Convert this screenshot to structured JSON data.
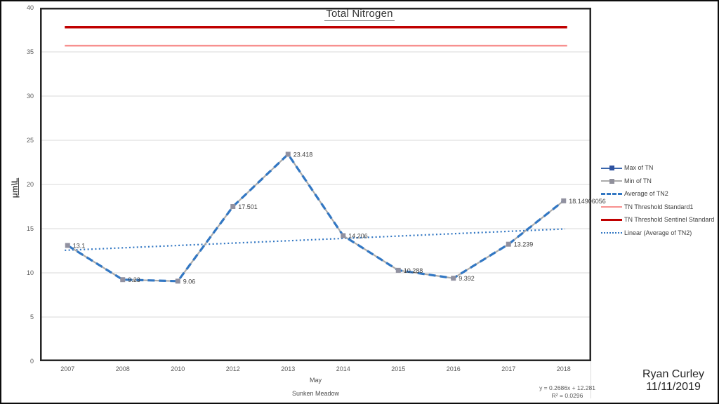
{
  "chart_data": {
    "type": "line",
    "title": "Total Nitrogen",
    "ylabel": "μm\\L",
    "xlabel": "May",
    "x_context": "Sunken Meadow",
    "ylim": [
      0,
      40
    ],
    "ytick_step": 5,
    "grid": true,
    "legend_position": "right",
    "categories": [
      "2007",
      "2008",
      "2010",
      "2012",
      "2013",
      "2014",
      "2015",
      "2016",
      "2017",
      "2018"
    ],
    "series": [
      {
        "name": "Max of TN",
        "values": [
          13.1,
          9.23,
          9.06,
          17.501,
          23.418,
          14.206,
          10.288,
          9.392,
          13.239,
          18.14906056
        ]
      },
      {
        "name": "Min of TN",
        "values": [
          13.1,
          9.23,
          9.06,
          17.501,
          23.418,
          14.206,
          10.288,
          9.392,
          13.239,
          18.14906056
        ]
      },
      {
        "name": "Average of TN2",
        "values": [
          13.1,
          9.23,
          9.06,
          17.501,
          23.418,
          14.206,
          10.288,
          9.392,
          13.239,
          18.14906056
        ]
      }
    ],
    "data_labels": [
      "13.1",
      "9.23",
      "9.06",
      "17.501",
      "23.418",
      "14.206",
      "10.288",
      "9.392",
      "13.239",
      "18.14906056"
    ],
    "thresholds": [
      {
        "name": "TN Threshold Standard1",
        "value": 35.7,
        "weight": 2.5
      },
      {
        "name": "TN Threshold Sentinel Standard",
        "value": 37.8,
        "weight": 3.5
      }
    ],
    "trendline": {
      "name": "Linear (Average of TN2)",
      "slope": 0.2686,
      "intercept": 12.281,
      "r2": 0.0296
    }
  },
  "colors": {
    "max_line": "#3A66AC",
    "max_marker": "#2E52A0",
    "min_line": "#ABABAB",
    "min_marker": "#90909B",
    "average_line": "#3277C3",
    "marker": "#9191A0",
    "threshold_standard": "#F7908F",
    "threshold_sentinel": "#C00000",
    "trend": "#3277C3",
    "grid": "#D9D9D9",
    "axis": "#262626",
    "tick_text": "#595959",
    "label_text": "#3F3F3F"
  },
  "legend": {
    "items": [
      {
        "label": "Max of TN",
        "swatch": "line-marker-blue"
      },
      {
        "label": "Min of TN",
        "swatch": "line-marker-gray"
      },
      {
        "label": "Average of TN2",
        "swatch": "dashed-blue"
      },
      {
        "label": "TN Threshold Standard1",
        "swatch": "solid-pink"
      },
      {
        "label": "TN Threshold Sentinel Standard",
        "swatch": "solid-darkred"
      },
      {
        "label": "Linear (Average of TN2)",
        "swatch": "dotted-blue"
      }
    ]
  },
  "annotations": {
    "equation_line1": "y = 0.2686x + 12.281",
    "equation_line2": "R² = 0.0296",
    "author_name": "Ryan Curley",
    "author_date": "11/11/2019"
  }
}
